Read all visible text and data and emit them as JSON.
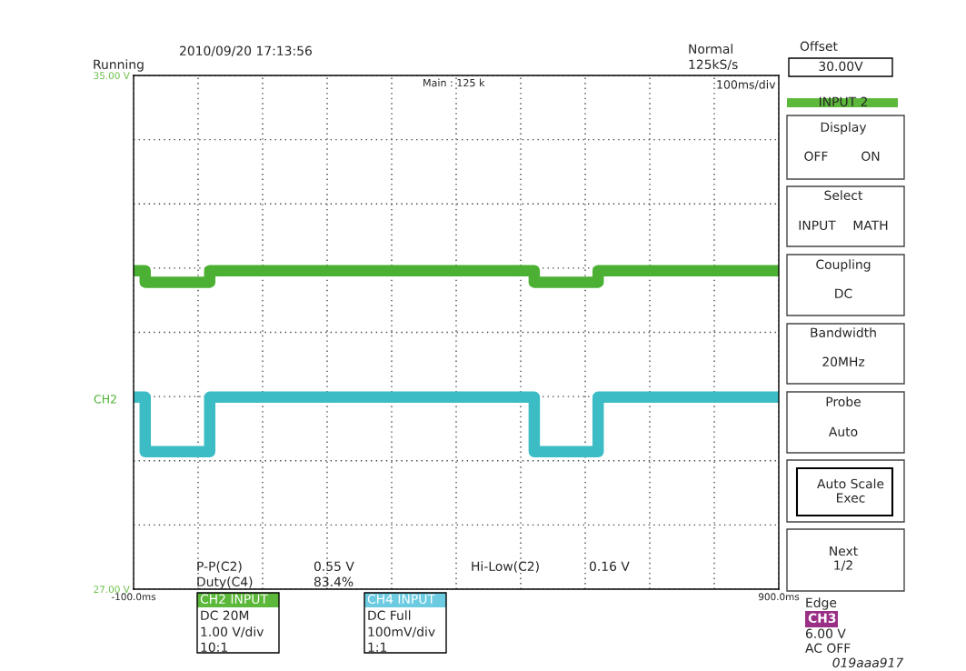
{
  "chart_data": {
    "type": "line",
    "x": [
      -100,
      -82,
      -82,
      18,
      18,
      521,
      521,
      620,
      620,
      900
    ],
    "series": [
      {
        "color": "#4cb034",
        "values": [
          31.96,
          31.96,
          31.78,
          31.78,
          31.96,
          31.96,
          31.78,
          31.78,
          31.96,
          31.96
        ]
      },
      {
        "color": "#3cbcc4",
        "values": [
          29.99,
          29.99,
          29.14,
          29.14,
          29.99,
          29.99,
          29.14,
          29.14,
          29.99,
          29.99
        ]
      }
    ],
    "xlim": [
      -100,
      900
    ],
    "xticks": [
      {
        "value": -100,
        "label": "-100.0ms"
      },
      {
        "value": 0,
        "label": null
      },
      {
        "value": 100,
        "label": null
      },
      {
        "value": 200,
        "label": null
      },
      {
        "value": 300,
        "label": null
      },
      {
        "value": 400,
        "label": null
      },
      {
        "value": 500,
        "label": null
      },
      {
        "value": 600,
        "label": null
      },
      {
        "value": 700,
        "label": null
      },
      {
        "value": 800,
        "label": null
      },
      {
        "value": 900,
        "label": "900.0ms"
      }
    ],
    "ylim": [
      27,
      35
    ],
    "yticks": [
      {
        "value": 27,
        "label": "27.00 V"
      },
      {
        "value": 28,
        "label": null
      },
      {
        "value": 29,
        "label": null
      },
      {
        "value": 30,
        "label": null
      },
      {
        "value": 31,
        "label": null
      },
      {
        "value": 32,
        "label": null
      },
      {
        "value": 33,
        "label": null
      },
      {
        "value": 34,
        "label": null
      },
      {
        "value": 35,
        "label": "35.00 V"
      }
    ],
    "grid": true,
    "legend": false,
    "marker": "none",
    "line_style": "solid",
    "annotations": [
      "2010/09/20 17:13:56",
      "Running",
      "Normal",
      "125kS/s",
      "Main : 125 k",
      "100ms/div",
      "CH2",
      "P-P(C2)",
      "0.55 V",
      "Hi-Low(C2)",
      "0.16 V",
      "Duty(C4)",
      "83.4%",
      "CH2 INPUT",
      "DC 20M",
      "1.00 V/div",
      "10:1",
      "CH4 INPUT",
      "DC Full",
      "100mV/div",
      "1:1",
      "Offset",
      "30.00V",
      "INPUT 2",
      "Display",
      "OFF",
      "ON",
      "Select",
      "INPUT",
      "MATH",
      "Coupling",
      "DC",
      "Bandwidth",
      "20MHz",
      "Probe",
      "Auto",
      "Auto Scale\nExec",
      "Next\n1/2",
      "Edge",
      "CH3",
      "6.00 V",
      "AC OFF",
      "019aaa917"
    ]
  }
}
